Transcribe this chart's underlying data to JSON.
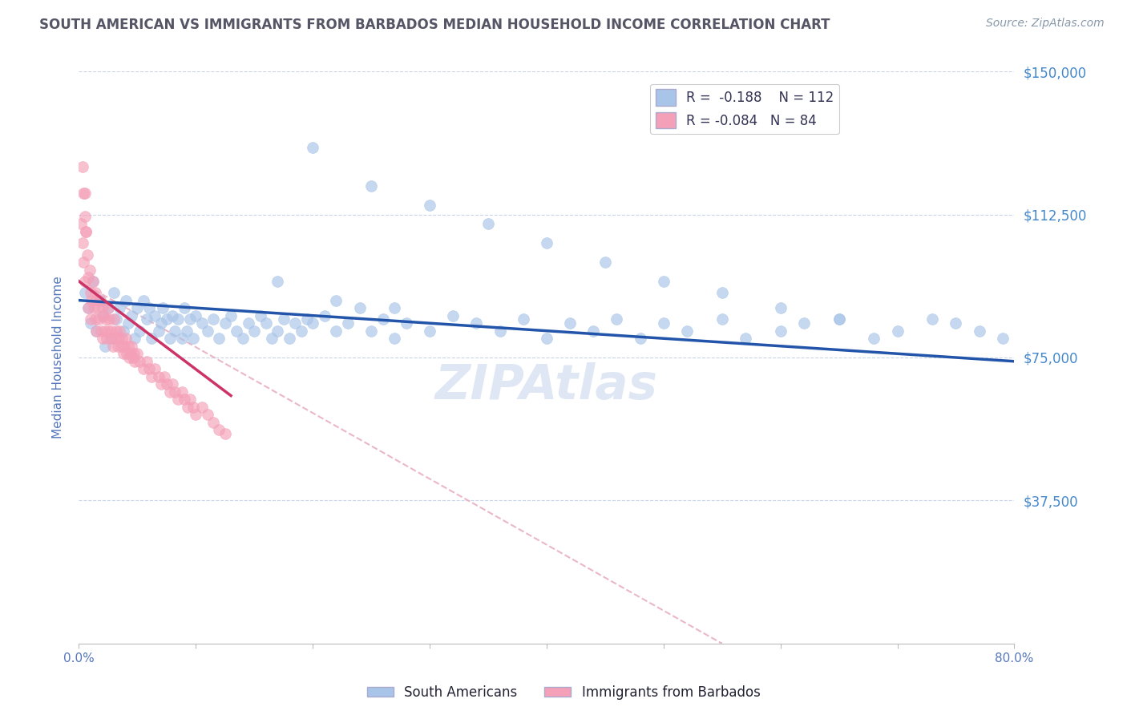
{
  "title": "SOUTH AMERICAN VS IMMIGRANTS FROM BARBADOS MEDIAN HOUSEHOLD INCOME CORRELATION CHART",
  "source_text": "Source: ZipAtlas.com",
  "ylabel": "Median Household Income",
  "xmin": 0.0,
  "xmax": 0.8,
  "ymin": 0,
  "ymax": 150000,
  "yticks": [
    0,
    37500,
    75000,
    112500,
    150000
  ],
  "ytick_labels": [
    "",
    "$37,500",
    "$75,000",
    "$112,500",
    "$150,000"
  ],
  "xticks": [
    0.0,
    0.1,
    0.2,
    0.3,
    0.4,
    0.5,
    0.6,
    0.7,
    0.8
  ],
  "xtick_labels": [
    "0.0%",
    "",
    "",
    "",
    "",
    "",
    "",
    "",
    "80.0%"
  ],
  "legend_r1": "R =  -0.188",
  "legend_n1": "N = 112",
  "legend_r2": "R = -0.084",
  "legend_n2": "N = 84",
  "blue_color": "#a8c4e8",
  "pink_color": "#f4a0b8",
  "blue_line_color": "#2255aa",
  "pink_line_color": "#cc3366",
  "dashed_line_color": "#e8b0c0",
  "title_color": "#555566",
  "axis_label_color": "#5577bb",
  "right_label_color": "#4488cc",
  "watermark_color": "#ccd8ee",
  "source_color": "#8899aa",
  "blue_scatter_x": [
    0.005,
    0.008,
    0.01,
    0.012,
    0.015,
    0.018,
    0.02,
    0.022,
    0.025,
    0.028,
    0.03,
    0.032,
    0.035,
    0.038,
    0.04,
    0.042,
    0.045,
    0.048,
    0.05,
    0.052,
    0.055,
    0.058,
    0.06,
    0.062,
    0.065,
    0.068,
    0.07,
    0.072,
    0.075,
    0.078,
    0.08,
    0.082,
    0.085,
    0.088,
    0.09,
    0.092,
    0.095,
    0.098,
    0.1,
    0.105,
    0.11,
    0.115,
    0.12,
    0.125,
    0.13,
    0.135,
    0.14,
    0.145,
    0.15,
    0.155,
    0.16,
    0.165,
    0.17,
    0.175,
    0.18,
    0.185,
    0.19,
    0.195,
    0.2,
    0.21,
    0.22,
    0.23,
    0.24,
    0.25,
    0.26,
    0.27,
    0.28,
    0.3,
    0.32,
    0.34,
    0.36,
    0.38,
    0.4,
    0.42,
    0.44,
    0.46,
    0.48,
    0.5,
    0.52,
    0.55,
    0.57,
    0.6,
    0.62,
    0.65,
    0.68,
    0.7,
    0.73,
    0.75,
    0.77,
    0.79,
    0.2,
    0.25,
    0.3,
    0.35,
    0.4,
    0.45,
    0.5,
    0.55,
    0.6,
    0.65,
    0.17,
    0.22,
    0.27
  ],
  "blue_scatter_y": [
    92000,
    88000,
    84000,
    95000,
    82000,
    90000,
    86000,
    78000,
    88000,
    80000,
    92000,
    85000,
    88000,
    82000,
    90000,
    84000,
    86000,
    80000,
    88000,
    82000,
    90000,
    85000,
    88000,
    80000,
    86000,
    82000,
    84000,
    88000,
    85000,
    80000,
    86000,
    82000,
    85000,
    80000,
    88000,
    82000,
    85000,
    80000,
    86000,
    84000,
    82000,
    85000,
    80000,
    84000,
    86000,
    82000,
    80000,
    84000,
    82000,
    86000,
    84000,
    80000,
    82000,
    85000,
    80000,
    84000,
    82000,
    85000,
    84000,
    86000,
    82000,
    84000,
    88000,
    82000,
    85000,
    80000,
    84000,
    82000,
    86000,
    84000,
    82000,
    85000,
    80000,
    84000,
    82000,
    85000,
    80000,
    84000,
    82000,
    85000,
    80000,
    82000,
    84000,
    85000,
    80000,
    82000,
    85000,
    84000,
    82000,
    80000,
    130000,
    120000,
    115000,
    110000,
    105000,
    100000,
    95000,
    92000,
    88000,
    85000,
    95000,
    90000,
    88000
  ],
  "pink_scatter_x": [
    0.002,
    0.003,
    0.004,
    0.005,
    0.005,
    0.006,
    0.007,
    0.008,
    0.008,
    0.009,
    0.01,
    0.01,
    0.011,
    0.012,
    0.013,
    0.014,
    0.014,
    0.015,
    0.015,
    0.016,
    0.017,
    0.018,
    0.019,
    0.02,
    0.02,
    0.021,
    0.022,
    0.023,
    0.024,
    0.025,
    0.025,
    0.026,
    0.027,
    0.028,
    0.029,
    0.03,
    0.031,
    0.032,
    0.033,
    0.034,
    0.035,
    0.036,
    0.037,
    0.038,
    0.039,
    0.04,
    0.041,
    0.042,
    0.043,
    0.044,
    0.045,
    0.046,
    0.047,
    0.048,
    0.05,
    0.052,
    0.055,
    0.058,
    0.06,
    0.062,
    0.065,
    0.068,
    0.07,
    0.073,
    0.075,
    0.078,
    0.08,
    0.082,
    0.085,
    0.088,
    0.09,
    0.093,
    0.095,
    0.098,
    0.1,
    0.105,
    0.11,
    0.115,
    0.12,
    0.125,
    0.003,
    0.004,
    0.005,
    0.006
  ],
  "pink_scatter_y": [
    110000,
    105000,
    100000,
    118000,
    95000,
    108000,
    102000,
    96000,
    88000,
    98000,
    92000,
    85000,
    90000,
    95000,
    88000,
    92000,
    85000,
    90000,
    82000,
    88000,
    85000,
    90000,
    82000,
    88000,
    80000,
    86000,
    82000,
    85000,
    80000,
    88000,
    82000,
    85000,
    80000,
    82000,
    78000,
    85000,
    80000,
    82000,
    78000,
    80000,
    82000,
    78000,
    80000,
    76000,
    78000,
    80000,
    76000,
    78000,
    75000,
    76000,
    78000,
    75000,
    76000,
    74000,
    76000,
    74000,
    72000,
    74000,
    72000,
    70000,
    72000,
    70000,
    68000,
    70000,
    68000,
    66000,
    68000,
    66000,
    64000,
    66000,
    64000,
    62000,
    64000,
    62000,
    60000,
    62000,
    60000,
    58000,
    56000,
    55000,
    125000,
    118000,
    112000,
    108000
  ],
  "blue_trend_x": [
    0.0,
    0.8
  ],
  "blue_trend_y": [
    90000,
    74000
  ],
  "pink_trend_x": [
    0.0,
    0.13
  ],
  "pink_trend_y": [
    95000,
    65000
  ],
  "dashed_trend_x": [
    0.0,
    0.55
  ],
  "dashed_trend_y": [
    95000,
    0
  ]
}
